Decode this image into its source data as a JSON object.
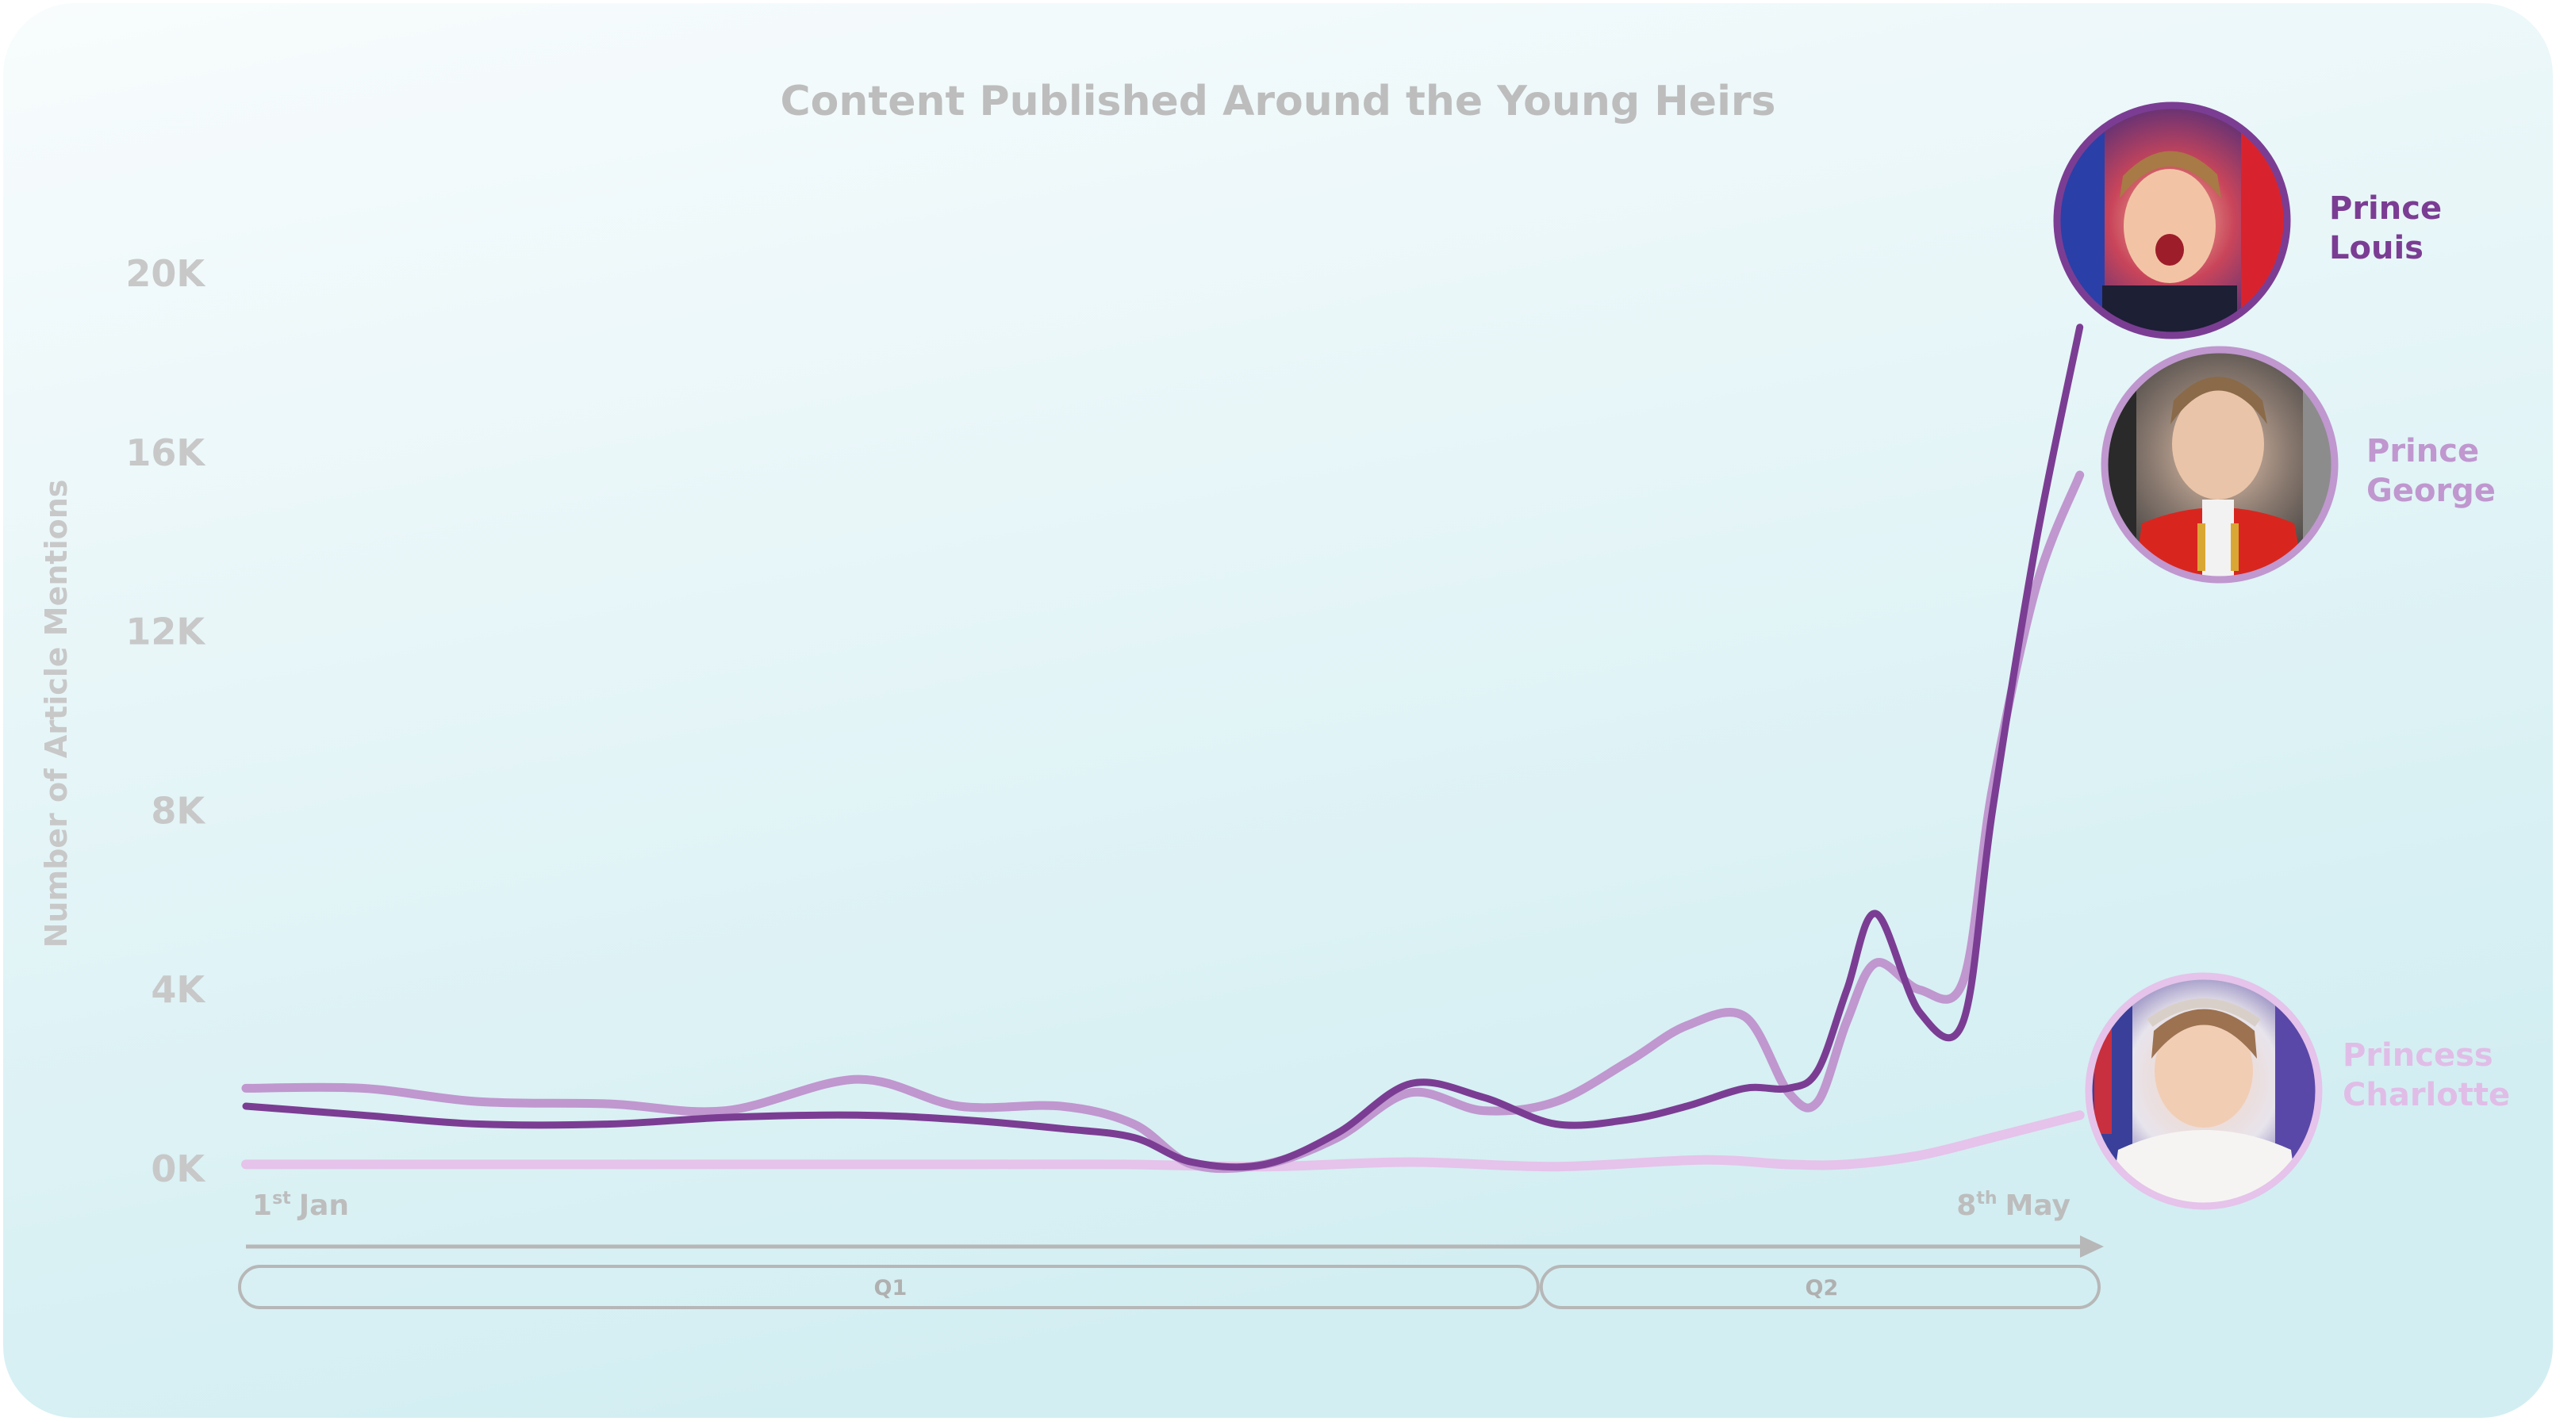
{
  "chart_data": {
    "type": "line",
    "title": "Content Published Around the Young Heirs",
    "ylabel": "Number of Article Mentions",
    "ylim": [
      0,
      20000
    ],
    "y_ticks": [
      {
        "value": 0,
        "label": "0K"
      },
      {
        "value": 4000,
        "label": "4K"
      },
      {
        "value": 8000,
        "label": "8K"
      },
      {
        "value": 12000,
        "label": "12K"
      },
      {
        "value": 16000,
        "label": "16K"
      },
      {
        "value": 20000,
        "label": "20K"
      }
    ],
    "x_start": {
      "day": "1",
      "suffix": "st",
      "month": "Jan"
    },
    "x_end": {
      "day": "8",
      "suffix": "th",
      "month": "May"
    },
    "xlim": [
      0,
      127
    ],
    "quarters": [
      {
        "label": "Q1",
        "from": 0,
        "to": 89
      },
      {
        "label": "Q2",
        "from": 89,
        "to": 127
      }
    ],
    "grid": false,
    "legend": "right, beside series ends",
    "series": [
      {
        "name": "Prince Louis",
        "name_lines": [
          "Prince",
          "Louis"
        ],
        "color": "#7b3d93",
        "x": [
          0,
          8,
          16,
          25,
          33,
          42,
          49,
          56,
          61,
          65,
          70,
          75,
          80,
          85,
          90,
          95,
          99,
          103,
          106,
          108,
          110,
          112,
          115,
          118,
          120,
          123,
          126
        ],
        "values": [
          1400,
          1200,
          1000,
          1000,
          1150,
          1200,
          1100,
          900,
          700,
          150,
          100,
          800,
          1900,
          1600,
          1000,
          1100,
          1400,
          1800,
          1800,
          2200,
          4000,
          5700,
          3500,
          3300,
          8000,
          14000,
          18800
        ]
      },
      {
        "name": "Prince George",
        "name_lines": [
          "Prince",
          "George"
        ],
        "color": "#c097cf",
        "x": [
          0,
          8,
          16,
          25,
          33,
          42,
          49,
          56,
          61,
          65,
          70,
          75,
          80,
          85,
          90,
          95,
          99,
          103,
          106,
          108,
          110,
          112,
          115,
          118,
          120,
          123,
          126
        ],
        "values": [
          1800,
          1800,
          1500,
          1450,
          1300,
          2000,
          1400,
          1400,
          1000,
          100,
          100,
          700,
          1700,
          1300,
          1500,
          2400,
          3200,
          3400,
          1700,
          1500,
          3300,
          4600,
          4000,
          4200,
          8500,
          13000,
          15500
        ]
      },
      {
        "name": "Princess Charlotte",
        "name_lines": [
          "Princess",
          "Charlotte"
        ],
        "color": "#e5c3ea",
        "x": [
          0,
          10,
          20,
          30,
          40,
          50,
          60,
          70,
          80,
          90,
          100,
          106,
          110,
          115,
          120,
          126
        ],
        "values": [
          100,
          100,
          100,
          100,
          100,
          100,
          100,
          50,
          150,
          50,
          200,
          100,
          100,
          300,
          700,
          1200
        ]
      }
    ]
  },
  "colors": {
    "axis_text": "#c8c8c8",
    "title_text": "#bdbdbd",
    "axis_line": "#b7b7b7",
    "bg_top": "#f7fbfc",
    "bg_bottom": "#d3eef2"
  },
  "images": [
    "prince-louis-photo",
    "prince-george-photo",
    "princess-charlotte-photo"
  ]
}
